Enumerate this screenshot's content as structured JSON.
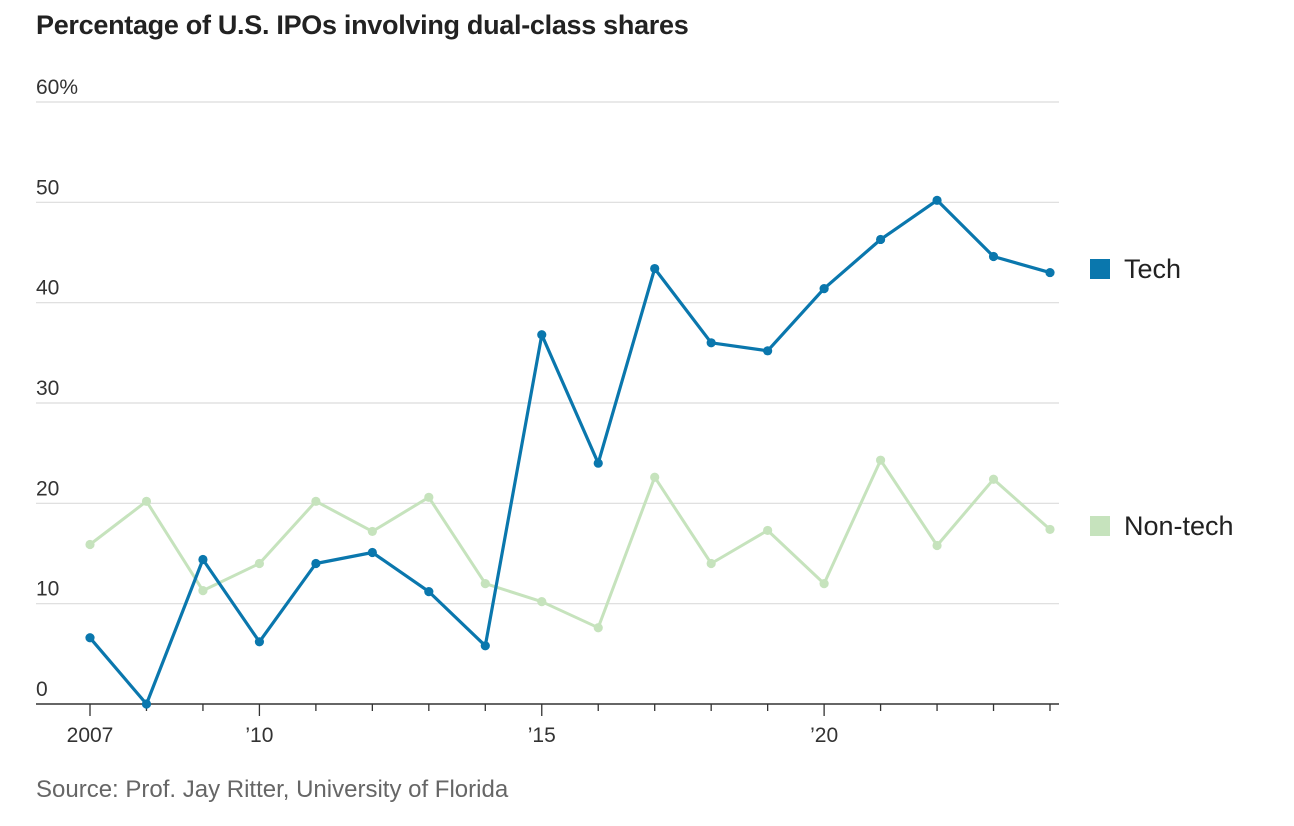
{
  "chart_data": {
    "type": "line",
    "title": "Percentage of U.S. IPOs involving dual-class shares",
    "source": "Source: Prof. Jay Ritter, University of Florida",
    "x": [
      2007,
      2008,
      2009,
      2010,
      2011,
      2012,
      2013,
      2014,
      2015,
      2016,
      2017,
      2018,
      2019,
      2020,
      2021,
      2022,
      2023,
      2024
    ],
    "x_tick_values": [
      2007,
      2010,
      2015,
      2020
    ],
    "x_tick_labels": [
      "2007",
      "’10",
      "’15",
      "’20"
    ],
    "ylim": [
      0,
      60
    ],
    "y_tick_values": [
      0,
      10,
      20,
      30,
      40,
      50,
      60
    ],
    "y_tick_labels": [
      "0",
      "10",
      "20",
      "30",
      "40",
      "50",
      "60%"
    ],
    "grid": true,
    "legend_position": "right",
    "series": [
      {
        "name": "Tech",
        "color": "#0a77ad",
        "values": [
          6.6,
          0,
          14.4,
          6.2,
          14,
          15.1,
          11.2,
          5.8,
          36.8,
          24,
          43.4,
          36,
          35.2,
          41.4,
          46.3,
          50.2,
          44.6,
          43
        ]
      },
      {
        "name": "Non-tech",
        "color": "#c6e3bd",
        "values": [
          15.9,
          20.2,
          11.3,
          14,
          20.2,
          17.2,
          20.6,
          12,
          10.2,
          7.6,
          22.6,
          14,
          17.3,
          12,
          24.3,
          15.8,
          22.4,
          17.4
        ]
      }
    ]
  }
}
